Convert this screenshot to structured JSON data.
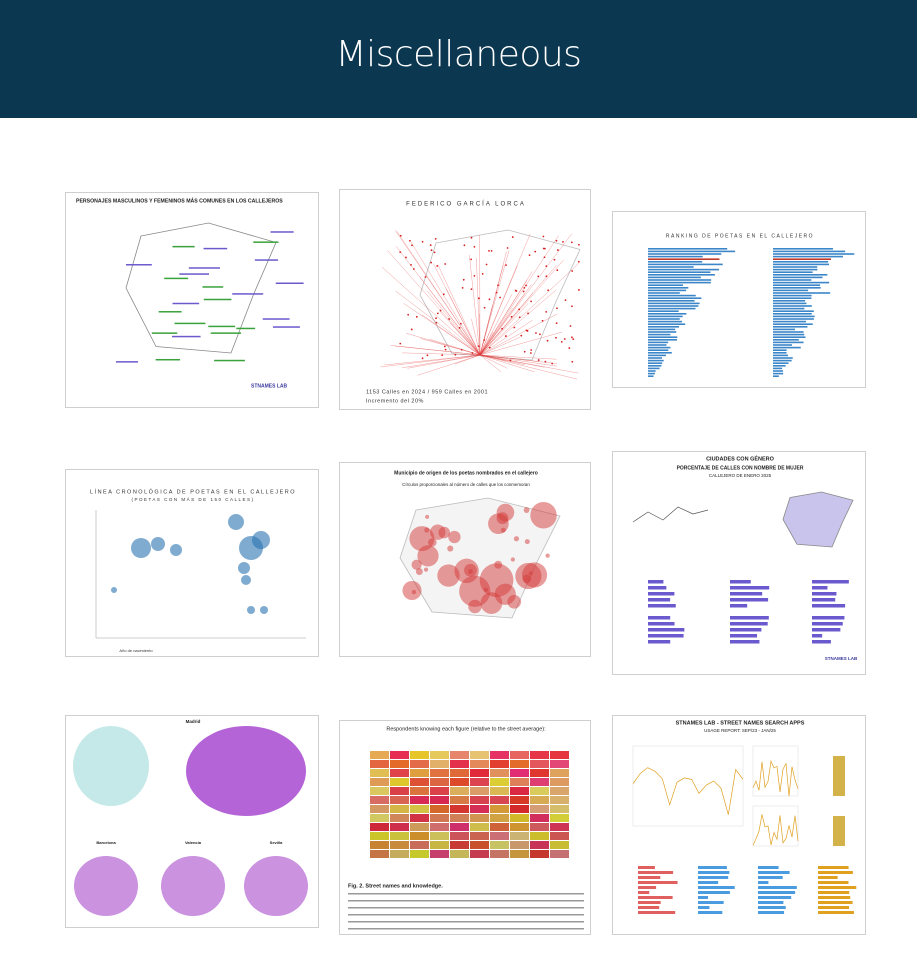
{
  "header": {
    "title": "Miscellaneous"
  },
  "thumbnails": [
    {
      "texts": [
        "PERSONAJES MASCULINOS Y FEMENINOS MÁS COMUNES EN LOS CALLEJEROS",
        "STNAMES LAB"
      ]
    },
    {
      "texts": [
        "FEDERICO GARCÍA LORCA",
        "1153 Calles en 2024 / 959 Calles en 2001",
        "Incremento del 20%"
      ]
    },
    {
      "texts": [
        "RANKING DE POETAS EN EL CALLEJERO"
      ]
    },
    {
      "texts": [
        "LÍNEA CRONOLÓGICA DE POETAS EN EL CALLEJERO",
        "(POETAS CON MÁS DE 150 CALLES)",
        "Año de nacimiento"
      ]
    },
    {
      "texts": [
        "Municipio de origen de los poetas nombrados en el callejero",
        "Círculos proporcionales al número de calles que los conmemoran"
      ]
    },
    {
      "texts": [
        "CIUDADES CON GÉNERO",
        "PORCENTAJE DE CALLES CON NOMBRE DE MUJER",
        "CALLEJERO DE ENERO 2025",
        "STNAMES LAB"
      ]
    },
    {
      "texts": [
        "Madrid",
        "Barcelona",
        "Valencia",
        "Sevilla"
      ]
    },
    {
      "texts": [
        "Respondents knowing each figure (relative to the street average):",
        "Fig. 2. Street names and knowledge."
      ]
    },
    {
      "texts": [
        "STNAMES LAB - STREET NAMES SEARCH APPS",
        "USAGE REPORT: SEP/23 - JAN/25"
      ]
    }
  ]
}
